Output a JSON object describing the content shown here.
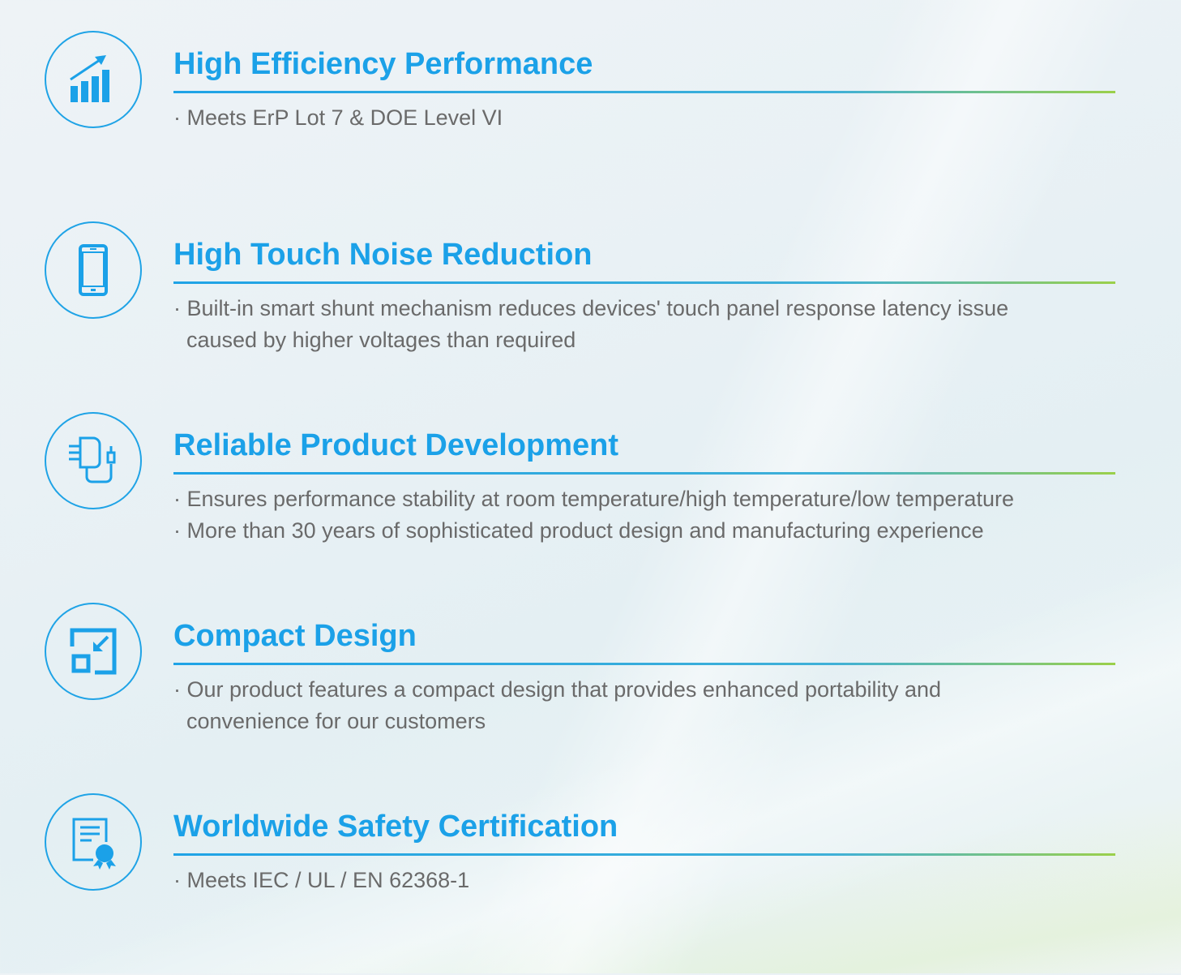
{
  "accent_color": "#1ba1e8",
  "features": [
    {
      "icon": "bar-chart-growth-icon",
      "title": "High Efficiency Performance",
      "bullets": [
        [
          "Meets ErP Lot 7 & DOE Level VI"
        ]
      ]
    },
    {
      "icon": "smartphone-icon",
      "title": "High Touch Noise Reduction",
      "bullets": [
        [
          "Built-in smart shunt mechanism reduces devices' touch panel response latency issue",
          "caused by higher voltages than required"
        ]
      ]
    },
    {
      "icon": "power-adapter-icon",
      "title": "Reliable Product Development",
      "bullets": [
        [
          "Ensures performance stability at room temperature/high temperature/low temperature"
        ],
        [
          "More than 30 years of sophisticated product  design and manufacturing experience"
        ]
      ]
    },
    {
      "icon": "compact-resize-icon",
      "title": "Compact Design",
      "bullets": [
        [
          "Our product features a compact design that provides enhanced portability and",
          "convenience for our customers"
        ]
      ]
    },
    {
      "icon": "certificate-icon",
      "title": "Worldwide Safety Certification",
      "bullets": [
        [
          "Meets IEC / UL / EN 62368-1"
        ]
      ]
    }
  ]
}
